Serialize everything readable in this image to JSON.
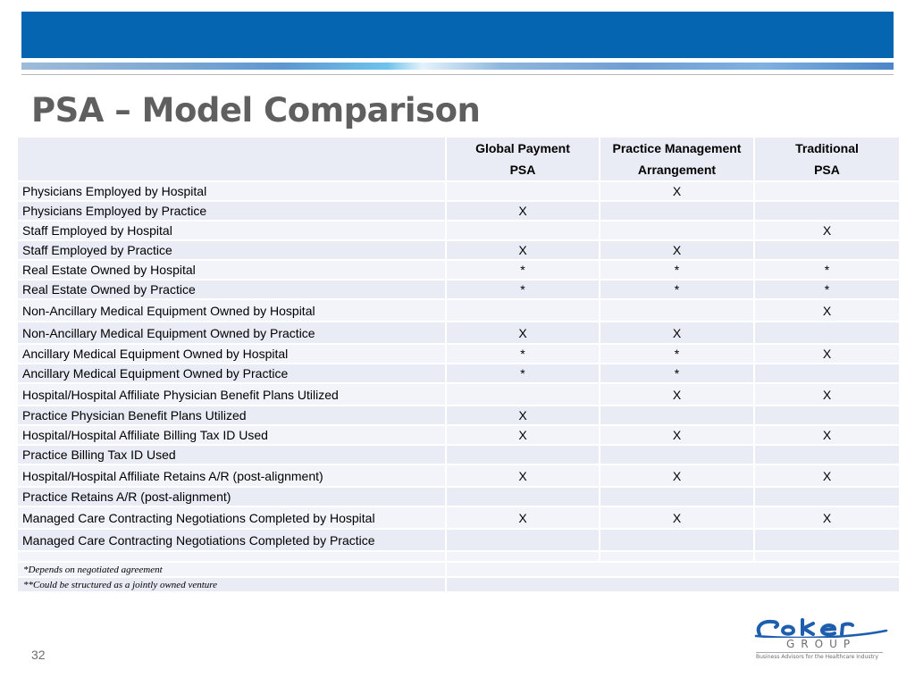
{
  "slide": {
    "title": "PSA – Model Comparison",
    "page_number": "32"
  },
  "table": {
    "headers": {
      "col1_line1": "Global Payment",
      "col1_line2": "PSA",
      "col2_line1": "Practice Management",
      "col2_line2": "Arrangement",
      "col3_line1": "Traditional",
      "col3_line2": "PSA"
    },
    "rows": [
      {
        "label": "Physicians Employed by Hospital",
        "c1": "",
        "c2": "X",
        "c3": ""
      },
      {
        "label": "Physicians Employed by Practice",
        "c1": "X",
        "c2": "",
        "c3": ""
      },
      {
        "label": "Staff Employed by Hospital",
        "c1": "",
        "c2": "",
        "c3": "X"
      },
      {
        "label": "Staff Employed by Practice",
        "c1": "X",
        "c2": "X",
        "c3": ""
      },
      {
        "label": "Real Estate Owned by Hospital",
        "c1": "*",
        "c2": "*",
        "c3": "*"
      },
      {
        "label": "Real Estate Owned by Practice",
        "c1": "*",
        "c2": "*",
        "c3": "*"
      },
      {
        "label": "Non-Ancillary Medical Equipment Owned by Hospital",
        "c1": "",
        "c2": "",
        "c3": "X"
      },
      {
        "label": "Non-Ancillary Medical Equipment Owned by Practice",
        "c1": "X",
        "c2": "X",
        "c3": ""
      },
      {
        "label": "Ancillary Medical Equipment Owned by Hospital",
        "c1": "*",
        "c2": "*",
        "c3": "X"
      },
      {
        "label": "Ancillary Medical Equipment Owned by Practice",
        "c1": "*",
        "c2": "*",
        "c3": ""
      },
      {
        "label": "Hospital/Hospital Affiliate Physician Benefit Plans Utilized",
        "c1": "",
        "c2": "X",
        "c3": "X"
      },
      {
        "label": "Practice Physician Benefit Plans Utilized",
        "c1": "X",
        "c2": "",
        "c3": ""
      },
      {
        "label": "Hospital/Hospital Affiliate Billing Tax ID Used",
        "c1": "X",
        "c2": "X",
        "c3": "X"
      },
      {
        "label": "Practice Billing Tax ID Used",
        "c1": "",
        "c2": "",
        "c3": ""
      },
      {
        "label": "Hospital/Hospital Affiliate Retains A/R (post-alignment)",
        "c1": "X",
        "c2": "X",
        "c3": "X"
      },
      {
        "label": "Practice Retains A/R (post-alignment)",
        "c1": "",
        "c2": "",
        "c3": ""
      },
      {
        "label": "Managed Care Contracting Negotiations Completed by Hospital",
        "c1": "X",
        "c2": "X",
        "c3": "X"
      },
      {
        "label": "Managed Care Contracting Negotiations Completed by Practice",
        "c1": "",
        "c2": "",
        "c3": ""
      },
      {
        "label": "",
        "c1": "",
        "c2": "",
        "c3": ""
      }
    ],
    "footnotes": [
      "*Depends on negotiated agreement",
      "**Could be structured as a jointly owned venture"
    ]
  },
  "logo": {
    "wordmark": "Coker",
    "group": "GROUP",
    "tagline": "Business Advisors for the Healthcare Industry"
  },
  "colors": {
    "header_band": "#0565b1",
    "title_text": "#5f5f5f",
    "row_light": "#f3f4fa",
    "row_dark": "#e9ebf5",
    "logo_blue": "#1d5fae"
  }
}
